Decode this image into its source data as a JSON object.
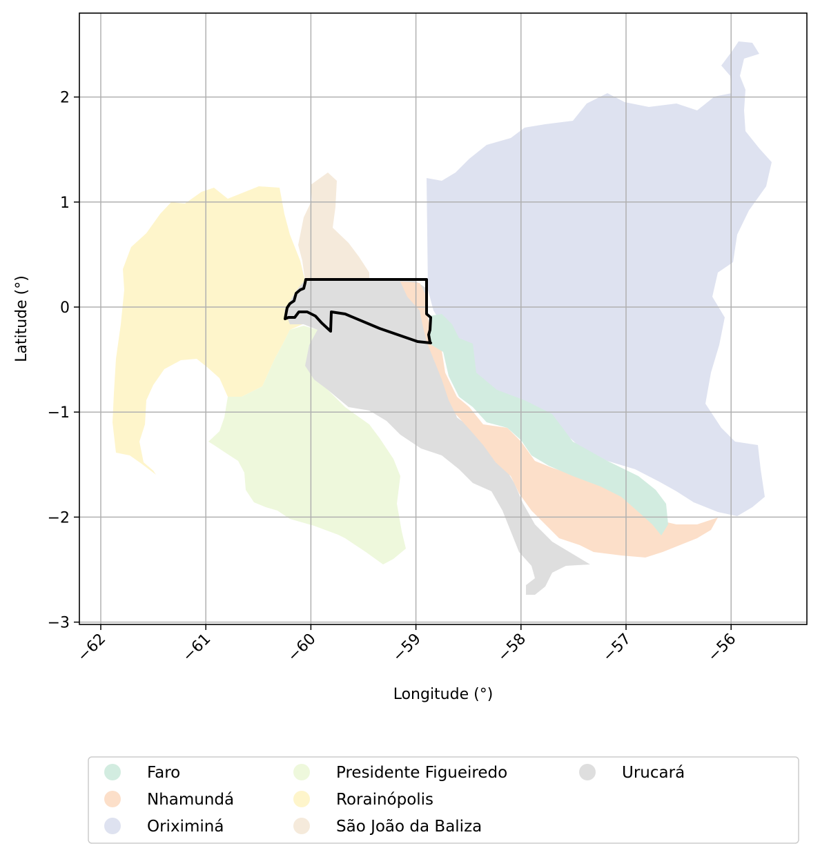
{
  "axes": {
    "xlabel": "Longitude (°)",
    "ylabel": "Latitude (°)",
    "xticks": [
      {
        "value": -62,
        "label": "−62"
      },
      {
        "value": -61,
        "label": "−61"
      },
      {
        "value": -60,
        "label": "−60"
      },
      {
        "value": -59,
        "label": "−59"
      },
      {
        "value": -58,
        "label": "−58"
      },
      {
        "value": -57,
        "label": "−57"
      },
      {
        "value": -56,
        "label": "−56"
      }
    ],
    "yticks": [
      {
        "value": 2,
        "label": "2"
      },
      {
        "value": 1,
        "label": "1"
      },
      {
        "value": 0,
        "label": "0"
      },
      {
        "value": -1,
        "label": "−1"
      },
      {
        "value": -2,
        "label": "−2"
      },
      {
        "value": -3,
        "label": "−3"
      }
    ],
    "xlim": [
      -62.2,
      -55.3
    ],
    "ylim": [
      -3.05,
      2.8
    ],
    "grid": true
  },
  "legend": {
    "placement": "below plot",
    "columns": 3,
    "items": [
      {
        "label": "Faro",
        "color": "#d2ece0"
      },
      {
        "label": "Nhamundá",
        "color": "#fcdfc9"
      },
      {
        "label": "Oriximiná",
        "color": "#dee2f0"
      },
      {
        "label": "Presidente Figueiredo",
        "color": "#eef8dc"
      },
      {
        "label": "Rorainópolis",
        "color": "#fef5cb"
      },
      {
        "label": "São João da Baliza",
        "color": "#f5eadb"
      },
      {
        "label": "Urucará",
        "color": "#dedede"
      }
    ]
  },
  "regions": [
    {
      "name": "Oriximiná",
      "color": "#dee2f0"
    },
    {
      "name": "Rorainópolis",
      "color": "#fef5cb"
    },
    {
      "name": "Presidente Figueiredo",
      "color": "#eef8dc"
    },
    {
      "name": "São João da Baliza",
      "color": "#f5eadb"
    },
    {
      "name": "Urucará",
      "color": "#dedede"
    },
    {
      "name": "Nhamundá",
      "color": "#fcdfc9"
    },
    {
      "name": "Faro",
      "color": "#d2ece0"
    }
  ],
  "highlight": {
    "style": "black outline"
  }
}
